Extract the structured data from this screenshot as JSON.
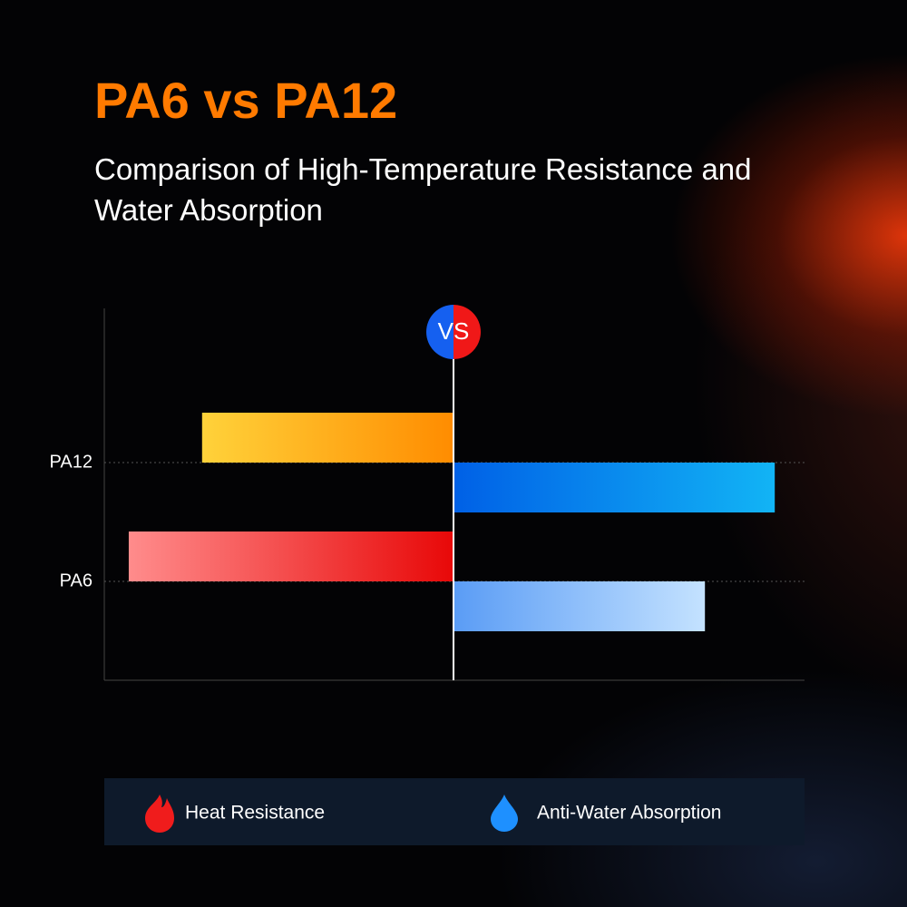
{
  "chart_data": {
    "type": "diverging-bar",
    "title": "PA6 vs PA12",
    "subtitle": "Comparison of High-Temperature Resistance and Water Absorption",
    "annotation": "VS",
    "categories": [
      "PA12",
      "PA6"
    ],
    "xlim": [
      0,
      100
    ],
    "series": [
      {
        "name": "Heat Resistance",
        "side": "left",
        "color": "#f5222d",
        "values": [
          72,
          93
        ],
        "gradients": [
          [
            "#ffd23a",
            "#ff8c00"
          ],
          [
            "#ff8c8c",
            "#e80808"
          ]
        ]
      },
      {
        "name": "Anti-Water Absorption",
        "side": "right",
        "color": "#1e90ff",
        "values": [
          92,
          72
        ],
        "gradients": [
          [
            "#0060e6",
            "#12b4f5"
          ],
          [
            "#5a9cf5",
            "#c4e2ff"
          ]
        ]
      }
    ]
  }
}
